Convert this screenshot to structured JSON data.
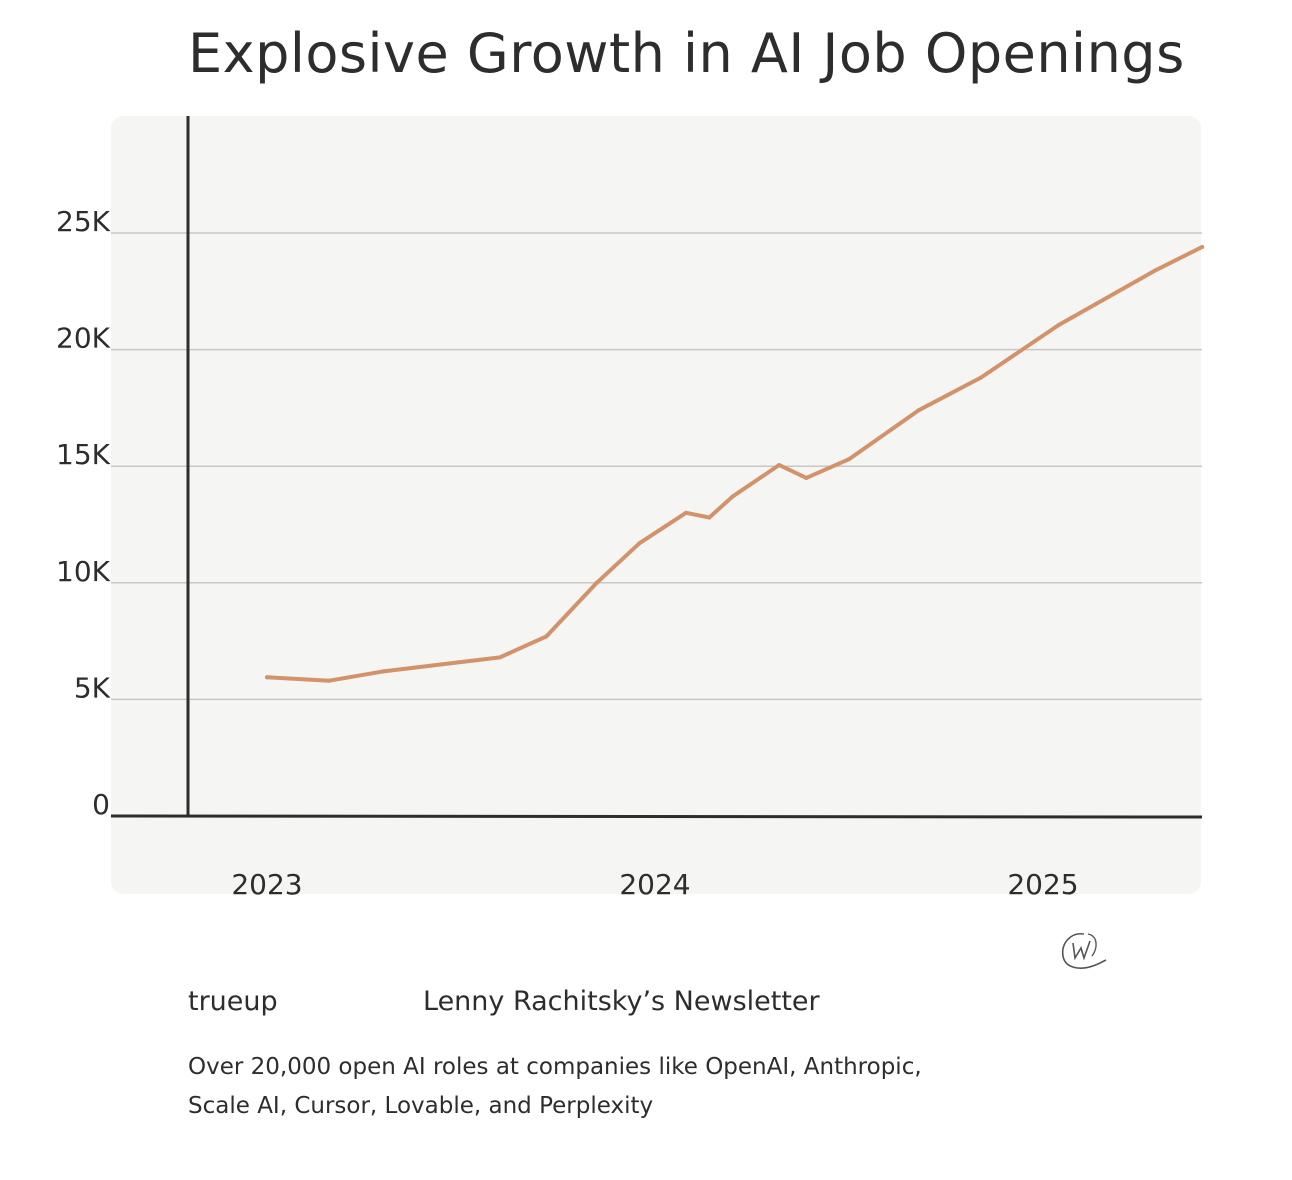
{
  "chart_data": {
    "type": "line",
    "title": "Explosive Growth in AI Job Openings",
    "xlabel": "",
    "ylabel": "",
    "x_ticks": [
      2023,
      2024,
      2025
    ],
    "x_tick_labels": [
      "2023",
      "2024",
      "2025"
    ],
    "y_ticks": [
      0,
      5000,
      10000,
      15000,
      20000,
      25000
    ],
    "y_tick_labels": [
      "0",
      "5K",
      "10K",
      "15K",
      "20K",
      "25K"
    ],
    "xlim": [
      2022.8,
      2025.42
    ],
    "ylim": [
      0,
      29000
    ],
    "grid": true,
    "legend": "none",
    "series": [
      {
        "name": "AI job openings",
        "color": "#d4926a",
        "x": [
          2023.0,
          2023.16,
          2023.3,
          2023.6,
          2023.72,
          2023.85,
          2023.96,
          2024.08,
          2024.14,
          2024.2,
          2024.32,
          2024.39,
          2024.5,
          2024.68,
          2024.84,
          2025.04,
          2025.29,
          2025.41
        ],
        "values": [
          5950,
          5800,
          6200,
          6800,
          7700,
          10000,
          11700,
          13000,
          12800,
          13700,
          15050,
          14500,
          15300,
          17400,
          18800,
          21050,
          23400,
          24400
        ]
      }
    ]
  },
  "footer": {
    "source_left": "trueup",
    "source_right": "Lenny Rachitsky’s Newsletter",
    "caption_line1": "Over 20,000 open AI roles at companies like OpenAI, Anthropic,",
    "caption_line2": "Scale AI, Cursor, Lovable, and Perplexity",
    "logo": "@w"
  },
  "colors": {
    "panel_bg": "#f5f5f3",
    "axis": "#2d2d2d",
    "grid": "#c8c8c6",
    "line": "#d4926a"
  }
}
